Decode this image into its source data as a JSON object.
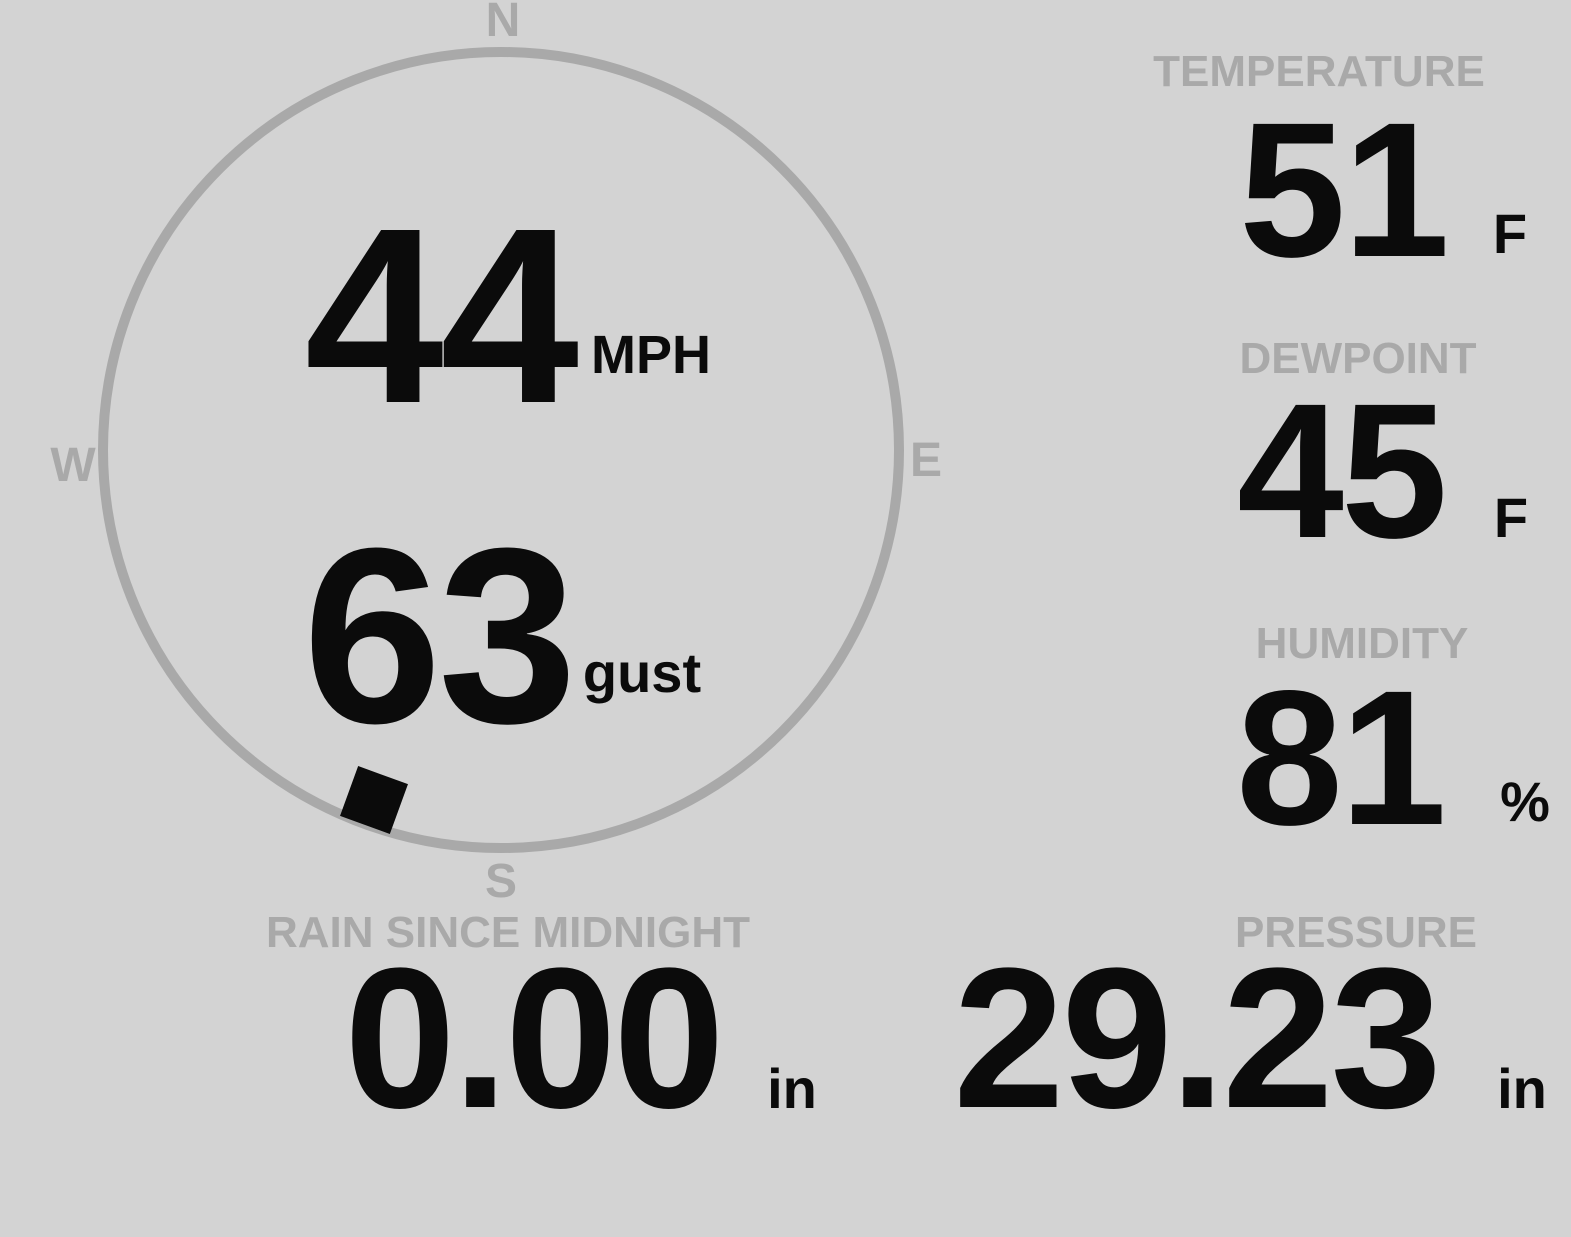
{
  "colors": {
    "background": "#d3d3d3",
    "muted": "#a9a9a9",
    "value": "#0b0b0b"
  },
  "wind": {
    "speed": "44",
    "speed_unit": "MPH",
    "gust": "63",
    "gust_unit": "gust",
    "direction_bearing_deg": 200,
    "compass_labels": {
      "north": "N",
      "east": "E",
      "south": "S",
      "west": "W"
    }
  },
  "metrics": {
    "temperature": {
      "label": "TEMPERATURE",
      "value": "51",
      "unit": "F"
    },
    "dewpoint": {
      "label": "DEWPOINT",
      "value": "45",
      "unit": "F"
    },
    "humidity": {
      "label": "HUMIDITY",
      "value": "81",
      "unit": "%"
    },
    "pressure": {
      "label": "PRESSURE",
      "value": "29.23",
      "unit": "in"
    },
    "rain": {
      "label": "RAIN SINCE MIDNIGHT",
      "value": "0.00",
      "unit": "in"
    }
  }
}
